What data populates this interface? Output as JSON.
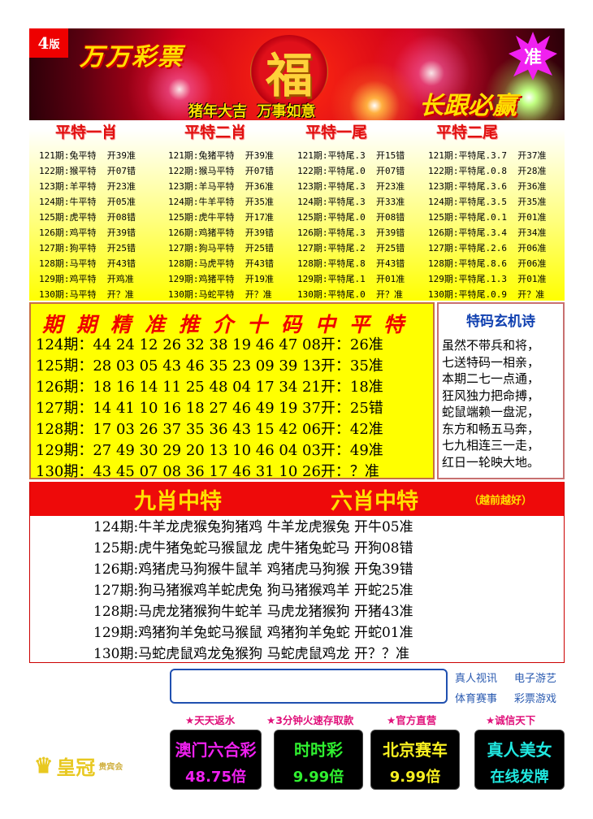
{
  "banner": {
    "version_num": "4",
    "version_label": "版",
    "brand": "万万彩票",
    "fu": "福",
    "slogan": "猪年大吉  万事如意",
    "badge": "准",
    "motto": "长跟必赢"
  },
  "columns": [
    {
      "title": "平特一肖",
      "rows": [
        "121期:兔平特  开39准",
        "122期:猴平特  开07错",
        "123期:羊平特  开23准",
        "124期:牛平特  开05准",
        "125期:虎平特  开08错",
        "126期:鸡平特  开39错",
        "127期:狗平特  开25错",
        "128期:马平特  开43错",
        "129期:鸡平特  开鸡准",
        "130期:马平特  开？准"
      ]
    },
    {
      "title": "平特二肖",
      "rows": [
        "121期:兔猪平特  开39准",
        "122期:猴马平特  开07错",
        "123期:羊马平特  开36准",
        "124期:牛羊平特  开35准",
        "125期:虎牛平特  开17准",
        "126期:鸡猪平特  开39错",
        "127期:狗马平特  开25错",
        "128期:马虎平特  开43错",
        "129期:鸡猪平特  开19准",
        "130期:马蛇平特  开？准"
      ]
    },
    {
      "title": "平特一尾",
      "rows": [
        "121期:平特尾.3  开15错",
        "122期:平特尾.0  开07错",
        "123期:平特尾.3  开23准",
        "124期:平特尾.3  开33准",
        "125期:平特尾.0  开08错",
        "126期:平特尾.3  开39错",
        "127期:平特尾.2  开25错",
        "128期:平特尾.8  开43错",
        "129期:平特尾.1  开01准",
        "130期:平特尾.0  开？准"
      ]
    },
    {
      "title": "平特二尾",
      "rows": [
        "121期:平特尾.3.7  开37准",
        "122期:平特尾.0.8  开28准",
        "123期:平特尾.3.6  开36准",
        "124期:平特尾.3.5  开35准",
        "125期:平特尾.0.1  开01准",
        "126期:平特尾.3.4  开34准",
        "127期:平特尾.2.6  开06准",
        "128期:平特尾.8.6  开06准",
        "129期:平特尾.1.3  开01准",
        "130期:平特尾.0.9  开？准"
      ]
    }
  ],
  "ten_codes": {
    "title": "期期精准推介十码中平特",
    "rows": [
      "124期：44 24 12 26 32 38 19 46 47 08开：26准",
      "125期：28 03 05 43 46 35 23 09 39 13开：35准",
      "126期：18 16 14 11 25 48 04 17 34 21开：18准",
      "127期：14 41 10 16 18 27 46 49 19 37开：25错",
      "128期：17 03 26 37 35 36 43 15 42 06开：42准",
      "129期：27 49 30 29 20 13 10 46 04 03开：49准",
      "130期：43 45 07 08 36 17 46 31 10 26开：？准"
    ]
  },
  "poem": {
    "title": "特码玄机诗",
    "lines": [
      "虽然不带兵和将，",
      "七送特码一相亲，",
      "本期二七一点通，",
      "狂风独力把命搏，",
      "蛇鼠端赖一盘泥，",
      "东方和畅五马奔，",
      "七九相连三一走，",
      "红日一轮映大地。"
    ]
  },
  "zodiac": {
    "title_nine": "九肖中特",
    "title_six": "六肖中特",
    "subtitle": "（越前越好）",
    "rows": [
      "124期:牛羊龙虎猴兔狗猪鸡 牛羊龙虎猴兔 开牛05准",
      "125期:虎牛猪兔蛇马猴鼠龙 虎牛猪兔蛇马 开狗08错",
      "126期:鸡猪虎马狗猴牛鼠羊 鸡猪虎马狗猴 开兔39错",
      "127期:狗马猪猴鸡羊蛇虎兔 狗马猪猴鸡羊 开蛇25准",
      "128期:马虎龙猪猴狗牛蛇羊 马虎龙猪猴狗 开猪43准",
      "129期:鸡猪狗羊兔蛇马猴鼠 鸡猪狗羊兔蛇 开蛇01准",
      "130期:马蛇虎鼠鸡龙兔猴狗 马蛇虎鼠鸡龙 开？？准"
    ]
  },
  "footer": {
    "input_value": "",
    "links": [
      "真人视讯",
      "电子游艺",
      "体育赛事",
      "彩票游戏"
    ],
    "tags": [
      "★天天返水",
      "★3分钟火速存取款",
      "★官方直营",
      "★诚信天下"
    ],
    "promos": [
      {
        "a": "澳门六合彩",
        "b": "48.75倍",
        "color": "#f020f0"
      },
      {
        "a": "时时彩",
        "b": "9.99倍",
        "color": "#30f030"
      },
      {
        "a": "北京赛车",
        "b": "9.99倍",
        "color": "#f8f020"
      },
      {
        "a": "真人美女",
        "b": "在线发牌",
        "color": "#20e8e0"
      }
    ],
    "logo": "皇冠",
    "logo_sub": "贵宾会"
  }
}
